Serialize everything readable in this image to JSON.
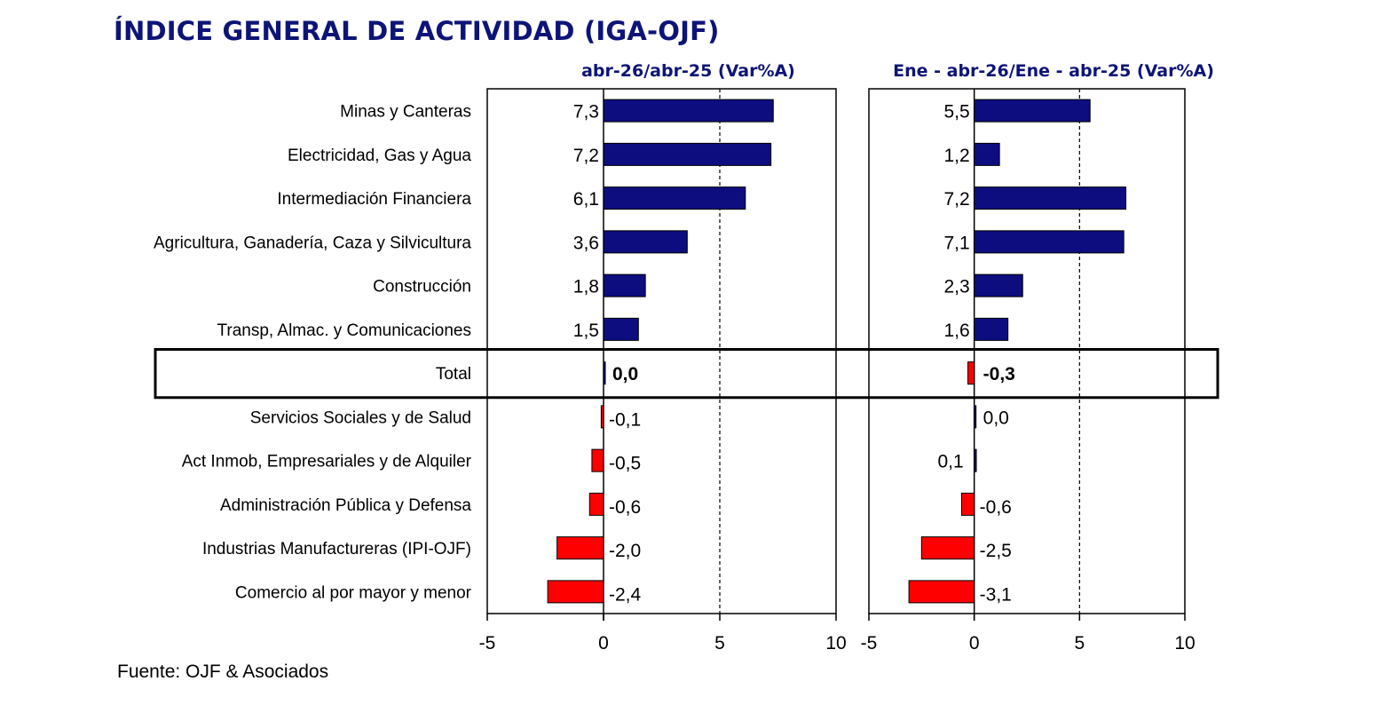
{
  "title": "ÍNDICE GENERAL DE ACTIVIDAD (IGA-OJF)",
  "source": "Fuente: OJF & Asociados",
  "colors": {
    "positive": "#0d0d80",
    "negative": "#ff0000",
    "title": "#0d1478"
  },
  "chart_data": {
    "type": "bar",
    "orientation": "horizontal",
    "categories": [
      "Minas y Canteras",
      "Electricidad, Gas y Agua",
      "Intermediación Financiera",
      "Agricultura, Ganadería, Caza y Silvicultura",
      "Construcción",
      "Transp, Almac. y Comunicaciones",
      "Total",
      "Servicios Sociales y de Salud",
      "Act Inmob, Empresariales y de Alquiler",
      "Administración Pública y Defensa",
      "Industrias Manufactureras (IPI-OJF)",
      "Comercio al por mayor y menor"
    ],
    "highlighted_category": "Total",
    "xlim": [
      -5,
      10
    ],
    "xticks": [
      "-5",
      "0",
      "5",
      "10"
    ],
    "reference_line": 5,
    "panels": [
      {
        "title": "abr-26/abr-25  (Var%A)",
        "values": [
          7.3,
          7.2,
          6.1,
          3.6,
          1.8,
          1.5,
          0.0,
          -0.1,
          -0.5,
          -0.6,
          -2.0,
          -2.4
        ],
        "labels": [
          "7,3",
          "7,2",
          "6,1",
          "3,6",
          "1,8",
          "1,5",
          "0,0",
          "-0,1",
          "-0,5",
          "-0,6",
          "-2,0",
          "-2,4"
        ]
      },
      {
        "title": "Ene - abr-26/Ene - abr-25  (Var%A)",
        "values": [
          5.5,
          1.2,
          7.2,
          7.1,
          2.3,
          1.6,
          -0.3,
          0.0,
          0.1,
          -0.6,
          -2.5,
          -3.1
        ],
        "labels": [
          "5,5",
          "1,2",
          "7,2",
          "7,1",
          "2,3",
          "1,6",
          "-0,3",
          "0,0",
          "0,1",
          "-0,6",
          "-2,5",
          "-3,1"
        ]
      }
    ]
  }
}
